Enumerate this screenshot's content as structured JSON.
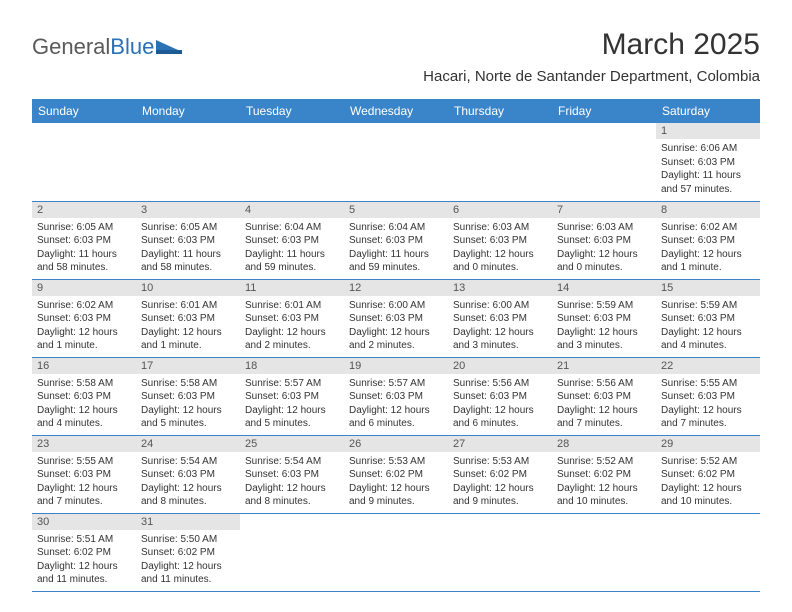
{
  "logo": {
    "text1": "General",
    "text2": "Blue"
  },
  "title": "March 2025",
  "location": "Hacari, Norte de Santander Department, Colombia",
  "colors": {
    "header_bg": "#3a85c9",
    "header_text": "#ffffff",
    "daynum_bg": "#e5e5e5",
    "daynum_text": "#555555",
    "body_text": "#333333",
    "rule": "#3a85c9",
    "logo_gray": "#5a5a5a",
    "logo_blue": "#2a72b5"
  },
  "weekdays": [
    "Sunday",
    "Monday",
    "Tuesday",
    "Wednesday",
    "Thursday",
    "Friday",
    "Saturday"
  ],
  "first_weekday_index": 6,
  "days": [
    {
      "n": 1,
      "sr": "6:06 AM",
      "ss": "6:03 PM",
      "dl": "11 hours and 57 minutes."
    },
    {
      "n": 2,
      "sr": "6:05 AM",
      "ss": "6:03 PM",
      "dl": "11 hours and 58 minutes."
    },
    {
      "n": 3,
      "sr": "6:05 AM",
      "ss": "6:03 PM",
      "dl": "11 hours and 58 minutes."
    },
    {
      "n": 4,
      "sr": "6:04 AM",
      "ss": "6:03 PM",
      "dl": "11 hours and 59 minutes."
    },
    {
      "n": 5,
      "sr": "6:04 AM",
      "ss": "6:03 PM",
      "dl": "11 hours and 59 minutes."
    },
    {
      "n": 6,
      "sr": "6:03 AM",
      "ss": "6:03 PM",
      "dl": "12 hours and 0 minutes."
    },
    {
      "n": 7,
      "sr": "6:03 AM",
      "ss": "6:03 PM",
      "dl": "12 hours and 0 minutes."
    },
    {
      "n": 8,
      "sr": "6:02 AM",
      "ss": "6:03 PM",
      "dl": "12 hours and 1 minute."
    },
    {
      "n": 9,
      "sr": "6:02 AM",
      "ss": "6:03 PM",
      "dl": "12 hours and 1 minute."
    },
    {
      "n": 10,
      "sr": "6:01 AM",
      "ss": "6:03 PM",
      "dl": "12 hours and 1 minute."
    },
    {
      "n": 11,
      "sr": "6:01 AM",
      "ss": "6:03 PM",
      "dl": "12 hours and 2 minutes."
    },
    {
      "n": 12,
      "sr": "6:00 AM",
      "ss": "6:03 PM",
      "dl": "12 hours and 2 minutes."
    },
    {
      "n": 13,
      "sr": "6:00 AM",
      "ss": "6:03 PM",
      "dl": "12 hours and 3 minutes."
    },
    {
      "n": 14,
      "sr": "5:59 AM",
      "ss": "6:03 PM",
      "dl": "12 hours and 3 minutes."
    },
    {
      "n": 15,
      "sr": "5:59 AM",
      "ss": "6:03 PM",
      "dl": "12 hours and 4 minutes."
    },
    {
      "n": 16,
      "sr": "5:58 AM",
      "ss": "6:03 PM",
      "dl": "12 hours and 4 minutes."
    },
    {
      "n": 17,
      "sr": "5:58 AM",
      "ss": "6:03 PM",
      "dl": "12 hours and 5 minutes."
    },
    {
      "n": 18,
      "sr": "5:57 AM",
      "ss": "6:03 PM",
      "dl": "12 hours and 5 minutes."
    },
    {
      "n": 19,
      "sr": "5:57 AM",
      "ss": "6:03 PM",
      "dl": "12 hours and 6 minutes."
    },
    {
      "n": 20,
      "sr": "5:56 AM",
      "ss": "6:03 PM",
      "dl": "12 hours and 6 minutes."
    },
    {
      "n": 21,
      "sr": "5:56 AM",
      "ss": "6:03 PM",
      "dl": "12 hours and 7 minutes."
    },
    {
      "n": 22,
      "sr": "5:55 AM",
      "ss": "6:03 PM",
      "dl": "12 hours and 7 minutes."
    },
    {
      "n": 23,
      "sr": "5:55 AM",
      "ss": "6:03 PM",
      "dl": "12 hours and 7 minutes."
    },
    {
      "n": 24,
      "sr": "5:54 AM",
      "ss": "6:03 PM",
      "dl": "12 hours and 8 minutes."
    },
    {
      "n": 25,
      "sr": "5:54 AM",
      "ss": "6:03 PM",
      "dl": "12 hours and 8 minutes."
    },
    {
      "n": 26,
      "sr": "5:53 AM",
      "ss": "6:02 PM",
      "dl": "12 hours and 9 minutes."
    },
    {
      "n": 27,
      "sr": "5:53 AM",
      "ss": "6:02 PM",
      "dl": "12 hours and 9 minutes."
    },
    {
      "n": 28,
      "sr": "5:52 AM",
      "ss": "6:02 PM",
      "dl": "12 hours and 10 minutes."
    },
    {
      "n": 29,
      "sr": "5:52 AM",
      "ss": "6:02 PM",
      "dl": "12 hours and 10 minutes."
    },
    {
      "n": 30,
      "sr": "5:51 AM",
      "ss": "6:02 PM",
      "dl": "12 hours and 11 minutes."
    },
    {
      "n": 31,
      "sr": "5:50 AM",
      "ss": "6:02 PM",
      "dl": "12 hours and 11 minutes."
    }
  ],
  "labels": {
    "sunrise": "Sunrise:",
    "sunset": "Sunset:",
    "daylight": "Daylight:"
  }
}
